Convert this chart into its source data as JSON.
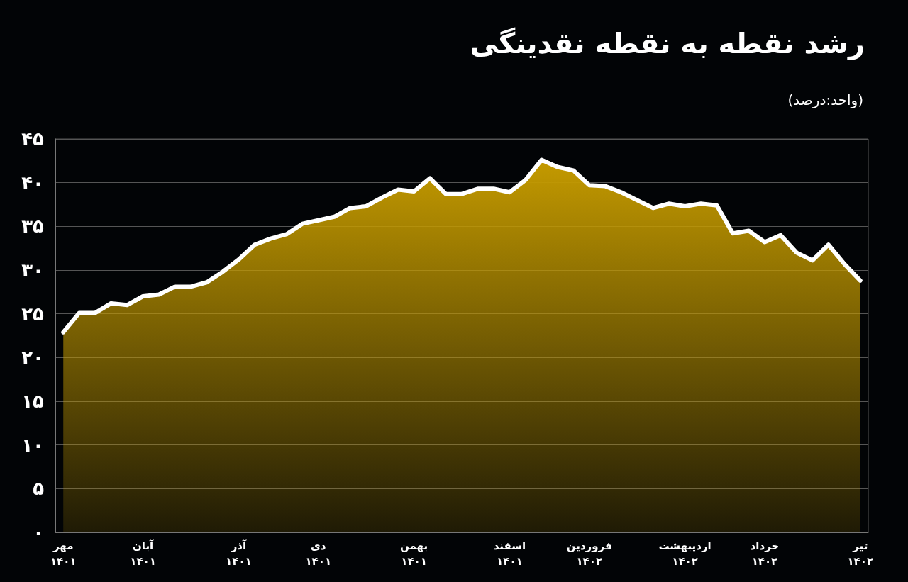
{
  "chart_data": {
    "type": "area",
    "title": "رشد نقطه به نقطه نقدینگی",
    "subtitle": "(واحد:درصد)",
    "categories": [
      "مهر\n۱۴۰۱",
      null,
      null,
      null,
      null,
      "آبان\n۱۴۰۱",
      null,
      null,
      null,
      null,
      null,
      "آذر\n۱۴۰۱",
      null,
      null,
      null,
      null,
      "دی\n۱۴۰۱",
      null,
      null,
      null,
      null,
      null,
      "بهمن\n۱۴۰۱",
      null,
      null,
      null,
      null,
      null,
      "اسفند\n۱۴۰۱",
      null,
      null,
      null,
      null,
      "فروردین\n۱۴۰۲",
      null,
      null,
      null,
      null,
      null,
      "اردیبهشت\n۱۴۰۲",
      null,
      null,
      null,
      null,
      "خرداد\n۱۴۰۲",
      null,
      null,
      null,
      null,
      null,
      "تیر\n۱۴۰۲"
    ],
    "series": [
      {
        "color": "#c49a00",
        "values": [
          22.9,
          25.1,
          25.1,
          26.2,
          26.0,
          27.0,
          27.2,
          28.1,
          28.1,
          28.6,
          29.8,
          31.2,
          32.9,
          33.6,
          34.1,
          35.3,
          35.7,
          36.1,
          37.1,
          37.3,
          38.3,
          39.2,
          39.0,
          40.5,
          38.7,
          38.7,
          39.3,
          39.3,
          38.9,
          40.3,
          42.6,
          41.8,
          41.4,
          39.7,
          39.6,
          38.9,
          38.0,
          37.1,
          37.6,
          37.3,
          37.6,
          37.4,
          34.2,
          34.5,
          33.2,
          34.0,
          32.0,
          31.1,
          32.9,
          30.7,
          28.8
        ]
      }
    ],
    "ylim": [
      0,
      45
    ],
    "yticks": [
      {
        "value": 0,
        "label": "۰"
      },
      {
        "value": 5,
        "label": "۵"
      },
      {
        "value": 10,
        "label": "۱۰"
      },
      {
        "value": 15,
        "label": "۱۵"
      },
      {
        "value": 20,
        "label": "۲۰"
      },
      {
        "value": 25,
        "label": "۲۵"
      },
      {
        "value": 30,
        "label": "۳۰"
      },
      {
        "value": 35,
        "label": "۳۵"
      },
      {
        "value": 40,
        "label": "۴۰"
      },
      {
        "value": 45,
        "label": "۴۵"
      }
    ],
    "grid": "y",
    "marker": "none",
    "line_style": "solid"
  }
}
